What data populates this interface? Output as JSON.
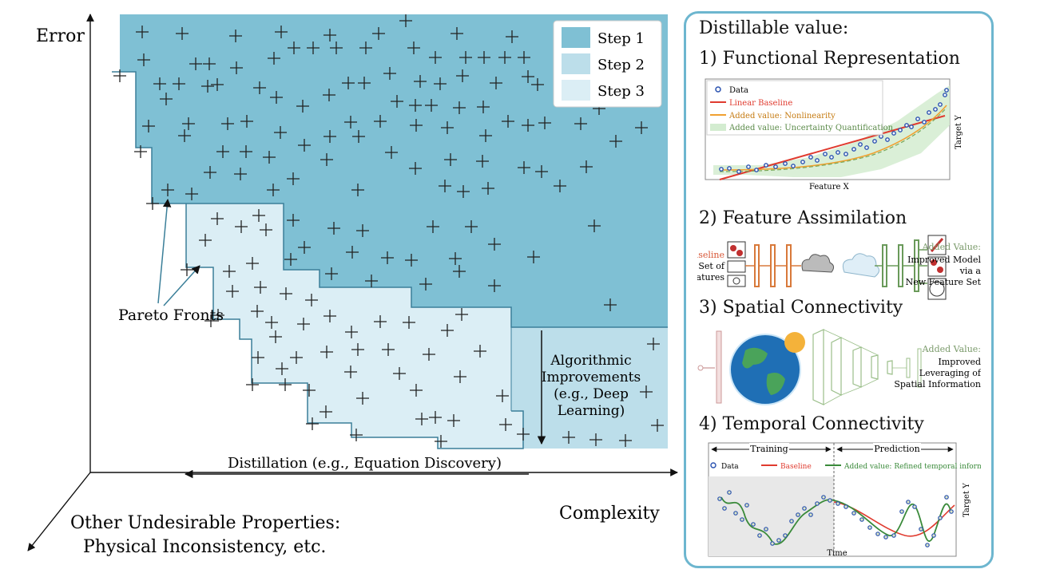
{
  "main": {
    "y_axis_label": "Error",
    "x_axis_label": "Complexity",
    "z_axis_label_line1": "Other Undesirable Properties:",
    "z_axis_label_line2": "Physical Inconsistency, etc.",
    "legend": [
      "Step 1",
      "Step 2",
      "Step 3"
    ],
    "pareto_label": "Pareto Fronts",
    "algo_label": [
      "Algorithmic",
      "Improvements",
      "(e.g., Deep",
      "Learning)"
    ],
    "distill_label": "Distillation (e.g., Equation Discovery)",
    "colors": {
      "step1": "#7fc0d4",
      "step2": "#bcdeea",
      "step3": "#dbeef5",
      "front": "#3b7f99"
    }
  },
  "panel": {
    "heading": "Distillable value:",
    "sections": [
      {
        "title": "1) Functional Representation"
      },
      {
        "title": "2) Feature Assimilation"
      },
      {
        "title": "3) Spatial Connectivity"
      },
      {
        "title": "4) Temporal Connectivity"
      }
    ],
    "s1": {
      "legend": [
        "Data",
        "Linear Baseline",
        "Added value: Nonlinearity",
        "Added value: Uncertainty Quantification"
      ],
      "xlabel": "Feature X",
      "ylabel": "Target Y"
    },
    "s2": {
      "baseline": "Baseline",
      "left_text": [
        "Set of",
        "Features"
      ],
      "added_title": "Added Value:",
      "added_text": [
        "Improved Model",
        "via a",
        "New Feature Set"
      ]
    },
    "s3": {
      "added_title": "Added Value:",
      "added_text": [
        "Improved",
        "Leveraging of",
        "Spatial Information"
      ]
    },
    "s4": {
      "training": "Training",
      "prediction": "Prediction",
      "legend": [
        "Data",
        "Baseline",
        "Added value: Refined temporal information"
      ],
      "xlabel": "Time",
      "ylabel": "Target Y"
    }
  }
}
